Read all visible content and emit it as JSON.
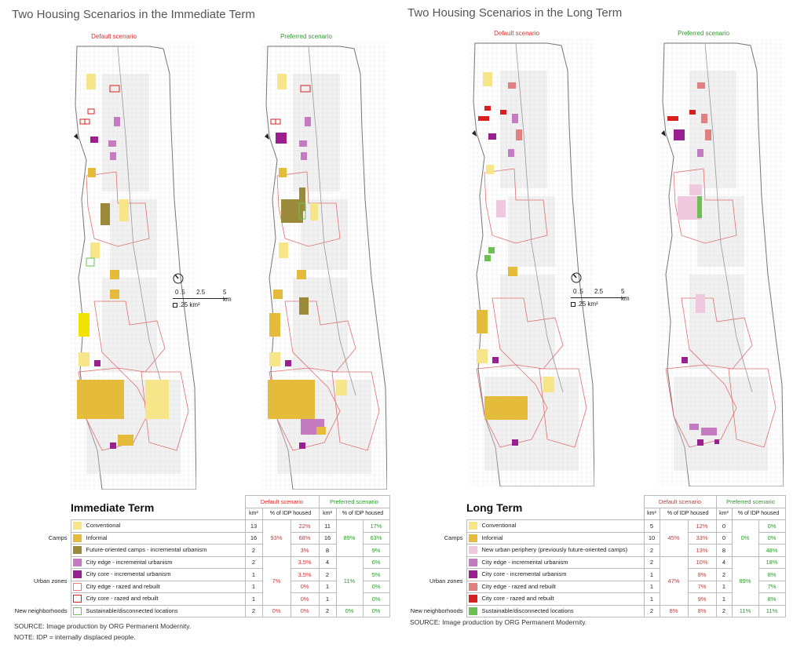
{
  "titles": {
    "immediate": "Two Housing Scenarios in the Immediate Term",
    "long": "Two Housing Scenarios in the Long Term"
  },
  "map_labels": {
    "default": "Default scenario",
    "preferred": "Preferred scenario"
  },
  "scale": {
    "ticks": [
      "0",
      ".5",
      "2.5",
      "5 km"
    ],
    "area": ".25 km²"
  },
  "colors": {
    "conventional": "#f7e58a",
    "informal": "#e5bb3c",
    "future_camps": "#9b8a3a",
    "new_periphery": "#f0c8e0",
    "city_edge_inc": "#c57bc2",
    "city_core_inc": "#9a1f8f",
    "city_edge_razed": "#e08080",
    "city_core_razed": "#d82020",
    "sustainable": "#6cc152",
    "default_red": "#d93030",
    "preferred_green": "#2e9a2e"
  },
  "immediate_table": {
    "title": "Immediate Term",
    "header_default": "Default scenario",
    "header_preferred": "Preferred scenario",
    "col_km": "km²",
    "col_pct": "% of IDP housed",
    "groups": {
      "camps": "Camps",
      "urban": "Urban zones",
      "new": "New neighborhoods"
    },
    "rows": [
      {
        "label": "Conventional",
        "d_km": "13",
        "d_grp": "",
        "d_pct": "22%",
        "p_km": "11",
        "p_grp": "",
        "p_pct": "17%"
      },
      {
        "label": "Informal",
        "d_km": "16",
        "d_grp": "93%",
        "d_pct": "68%",
        "p_km": "16",
        "p_grp": "89%",
        "p_pct": "63%"
      },
      {
        "label": "Future-oriented camps - incremental urbanism",
        "d_km": "2",
        "d_grp": "",
        "d_pct": "3%",
        "p_km": "8",
        "p_grp": "",
        "p_pct": "9%"
      },
      {
        "label": "City edge - incremental urbanism",
        "d_km": "2",
        "d_grp": "",
        "d_pct": "3.5%",
        "p_km": "4",
        "p_grp": "",
        "p_pct": "6%"
      },
      {
        "label": "City core - incremental urbanism",
        "d_km": "1",
        "d_grp": "7%",
        "d_pct": "3.5%",
        "p_km": "2",
        "p_grp": "11%",
        "p_pct": "5%"
      },
      {
        "label": "City edge - razed and rebuilt",
        "d_km": "1",
        "d_grp": "",
        "d_pct": "0%",
        "p_km": "1",
        "p_grp": "",
        "p_pct": "0%"
      },
      {
        "label": "City core - razed and rebuilt",
        "d_km": "1",
        "d_grp": "",
        "d_pct": "0%",
        "p_km": "1",
        "p_grp": "",
        "p_pct": "0%"
      },
      {
        "label": "Sustainable/disconnected locations",
        "d_km": "2",
        "d_grp": "0%",
        "d_pct": "0%",
        "p_km": "2",
        "p_grp": "0%",
        "p_pct": "0%"
      }
    ]
  },
  "long_table": {
    "title": "Long Term",
    "header_default": "Default scenario",
    "header_preferred": "Preferred scenario",
    "col_km": "km²",
    "col_pct": "% of IDP housed",
    "groups": {
      "camps": "Camps",
      "urban": "Urban zones",
      "new": "New neighborhoods"
    },
    "rows": [
      {
        "label": "Conventional",
        "d_km": "5",
        "d_grp": "",
        "d_pct": "12%",
        "p_km": "0",
        "p_grp": "",
        "p_pct": "0%"
      },
      {
        "label": "Informal",
        "d_km": "10",
        "d_grp": "45%",
        "d_pct": "33%",
        "p_km": "0",
        "p_grp": "0%",
        "p_pct": "0%"
      },
      {
        "label": "New urban periphery (previously future-oriented camps)",
        "d_km": "2",
        "d_grp": "",
        "d_pct": "13%",
        "p_km": "8",
        "p_grp": "",
        "p_pct": "48%"
      },
      {
        "label": "City edge - incremental urbanism",
        "d_km": "2",
        "d_grp": "",
        "d_pct": "10%",
        "p_km": "4",
        "p_grp": "",
        "p_pct": "18%"
      },
      {
        "label": "City core - incremental urbanism",
        "d_km": "1",
        "d_grp": "47%",
        "d_pct": "8%",
        "p_km": "2",
        "p_grp": "89%",
        "p_pct": "8%"
      },
      {
        "label": "City edge - razed and rebuilt",
        "d_km": "1",
        "d_grp": "",
        "d_pct": "7%",
        "p_km": "1",
        "p_grp": "",
        "p_pct": "7%"
      },
      {
        "label": "City core - razed and rebuilt",
        "d_km": "1",
        "d_grp": "",
        "d_pct": "9%",
        "p_km": "1",
        "p_grp": "",
        "p_pct": "8%"
      },
      {
        "label": "Sustainable/disconnected locations",
        "d_km": "2",
        "d_grp": "8%",
        "d_pct": "8%",
        "p_km": "2",
        "p_grp": "11%",
        "p_pct": "11%"
      }
    ]
  },
  "notes": {
    "source_left": "SOURCE: Image production by ORG Permanent Modernity.",
    "note_left": "NOTE: IDP = internally displaced people.",
    "source_right": "SOURCE: Image production by ORG Permanent Modernity."
  }
}
